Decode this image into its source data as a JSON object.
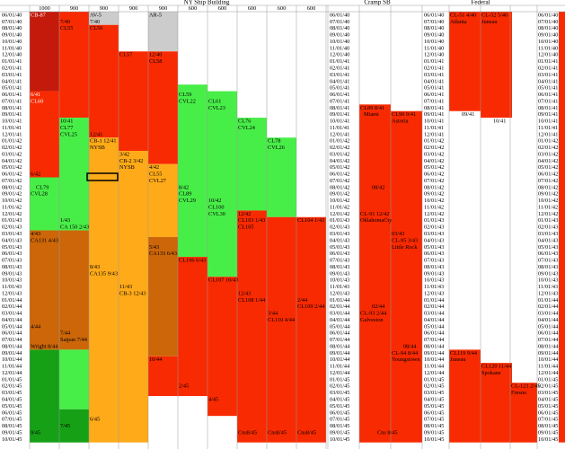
{
  "header": {
    "sections": [
      "NY Ship Building",
      "Cramp SB",
      "Federal"
    ],
    "columns": [
      "1000",
      "900",
      "900",
      "900",
      "900",
      "600",
      "600",
      "600",
      "600",
      "600"
    ]
  },
  "dates": [
    "06/01/40",
    "07/01/40",
    "08/01/40",
    "09/01/40",
    "10/01/40",
    "11/01/40",
    "12/01/40",
    "01/01/41",
    "02/01/41",
    "03/01/41",
    "04/01/41",
    "05/01/41",
    "06/01/41",
    "07/01/41",
    "08/01/41",
    "09/01/41",
    "10/01/41",
    "11/01/41",
    "12/01/41",
    "01/01/42",
    "02/01/42",
    "03/01/42",
    "04/01/42",
    "05/01/42",
    "06/01/42",
    "07/01/42",
    "08/01/42",
    "09/01/42",
    "10/01/42",
    "11/01/42",
    "12/01/42",
    "01/01/43",
    "02/01/43",
    "03/01/43",
    "04/01/43",
    "05/01/43",
    "06/01/43",
    "07/01/43",
    "08/01/43",
    "09/01/43",
    "10/01/43",
    "11/01/43",
    "12/01/43",
    "01/01/44",
    "02/01/44",
    "03/01/44",
    "04/01/44",
    "05/01/44",
    "06/01/44",
    "07/01/44",
    "08/01/44",
    "09/01/44",
    "10/01/44",
    "11/01/44",
    "12/01/44",
    "01/01/45",
    "02/01/45",
    "03/01/45",
    "04/01/45",
    "05/01/45",
    "06/01/45",
    "07/01/45",
    "08/01/45",
    "09/01/45",
    "10/01/45"
  ],
  "labels": [
    "CB-87",
    "7/40",
    "CL55",
    "AV-5",
    "7/40",
    "CL56",
    "AR-5",
    "CL57",
    "12/40",
    "CL58",
    "6/41",
    "CL60",
    "CL59",
    "CVL22",
    "CL61",
    "CVL23",
    "CL76",
    "CVL24",
    "10/41",
    "CL77",
    "CVL25",
    "CL78",
    "CVL26",
    "12/41",
    "CB-1 12/41",
    "NYSB",
    "3/42",
    "CB-2 3/42",
    "NYSB",
    "4/42",
    "CL55",
    "CVL27",
    "6/42",
    "CL79",
    "CVL28",
    "8/42",
    "CL89",
    "CVL29",
    "10/42",
    "CL100",
    "CVL30",
    "12/42",
    "CL103 1/43",
    "CL105",
    "CL104 1/43",
    "1/43",
    "CA 150 2/43",
    "4/43",
    "CA131 4/43",
    "5/43",
    "CA133 6/43",
    "CL106 6/43",
    "8/43",
    "CA135 9/43",
    "CL107 10/43",
    "11/43",
    "12/43",
    "CL108 1/44",
    "CB-3 12/43",
    "2/44",
    "CL109 2/44",
    "3/44",
    "CL110 4/44",
    "4/44",
    "7/44",
    "Saipan 7/44",
    "Wright 8/44",
    "10/44",
    "2/45",
    "4/45",
    "6/45",
    "7/45",
    "9/45",
    "Cns8/45",
    "Cns8/45",
    "Cns8/45",
    "CL89 8/41",
    "Miami",
    "CL90 9/41",
    "Astoria",
    "08/42",
    "CL-91 12/42",
    "OklahomaCty",
    "03/43",
    "CL-95 3/43",
    "Little Rock",
    "02/44",
    "CL-93 2/44",
    "Galveston",
    "08/44",
    "CL-94 8/44",
    "Youngstown",
    "Cns 8/45",
    "CL-51 4/40",
    "Atlanta",
    "CL-52 5/40",
    "Juneau",
    "09/41",
    "10/41",
    "CL119 9/44",
    "Juneau",
    "CL120 11/44",
    "Spokane",
    "CL-121 2/45",
    "Fresno"
  ]
}
